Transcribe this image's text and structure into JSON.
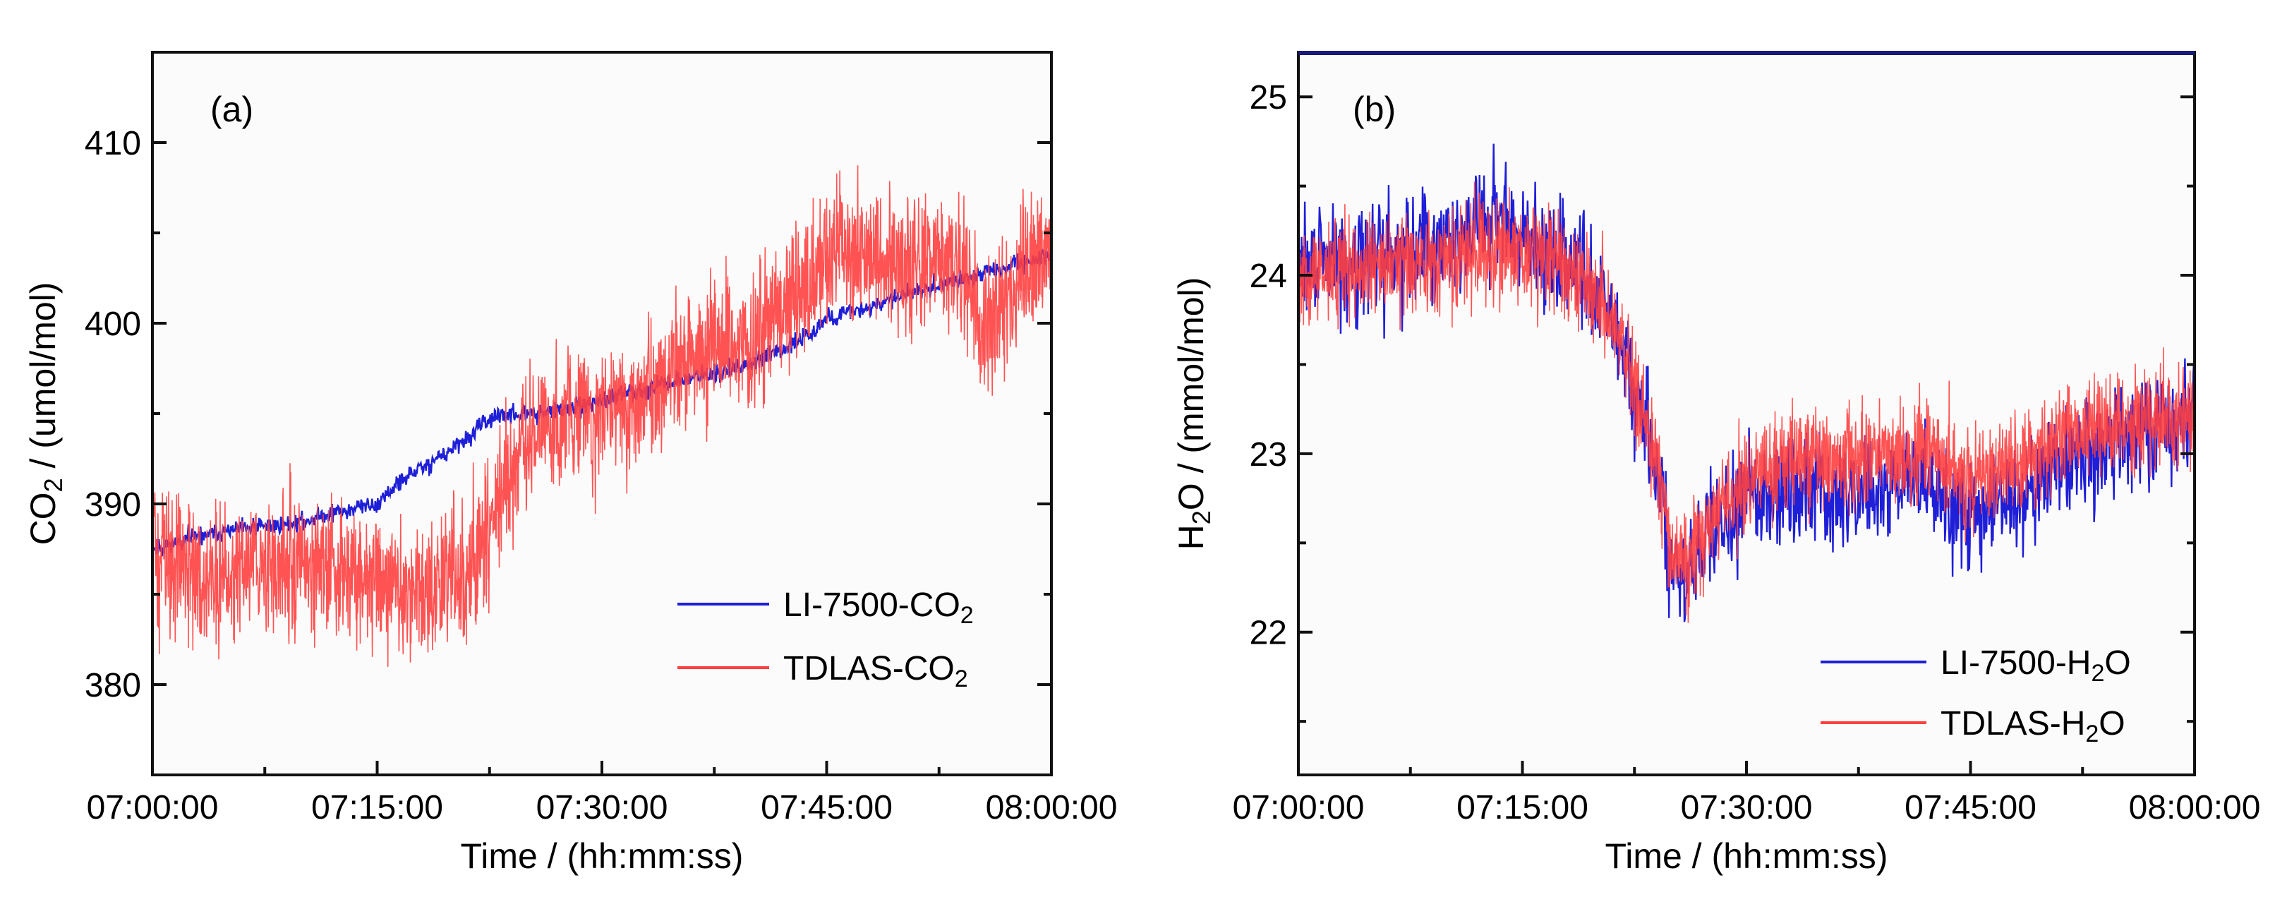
{
  "chart_data": [
    {
      "type": "line",
      "panel_label": "(a)",
      "xlabel": "Time / (hh:mm:ss)",
      "ylabel": {
        "prefix": "CO",
        "sub": "2",
        "suffix": " / (umol/mol)"
      },
      "x_ticks": [
        "07:00:00",
        "07:15:00",
        "07:30:00",
        "07:45:00",
        "08:00:00"
      ],
      "xlim_minutes": [
        0,
        60
      ],
      "ylim": [
        375,
        415
      ],
      "y_ticks": [
        380,
        390,
        400,
        410
      ],
      "legend_position": "bottom-right",
      "series": [
        {
          "name": {
            "prefix": "LI-7500-CO",
            "sub": "2"
          },
          "color": "#1f1fd8",
          "noise": 0.35,
          "points": [
            [
              0,
              387.5
            ],
            [
              2,
              388
            ],
            [
              5,
              388.5
            ],
            [
              10,
              389
            ],
            [
              12,
              389.5
            ],
            [
              15,
              390
            ],
            [
              17,
              391.5
            ],
            [
              19,
              392.5
            ],
            [
              21,
              393.5
            ],
            [
              22,
              394.5
            ],
            [
              24,
              395
            ],
            [
              26,
              395
            ],
            [
              28,
              395.3
            ],
            [
              30,
              395.7
            ],
            [
              32,
              396.2
            ],
            [
              34,
              396.6
            ],
            [
              36,
              397
            ],
            [
              38,
              397.3
            ],
            [
              40,
              397.8
            ],
            [
              42,
              398.5
            ],
            [
              44,
              399.5
            ],
            [
              45,
              400.3
            ],
            [
              47,
              400.7
            ],
            [
              49,
              401.2
            ],
            [
              51,
              401.8
            ],
            [
              53,
              402.3
            ],
            [
              56,
              402.8
            ],
            [
              58,
              403.3
            ],
            [
              60,
              403.8
            ]
          ]
        },
        {
          "name": {
            "prefix": "TDLAS-CO",
            "sub": "2"
          },
          "color": "#ff4040",
          "noise": 2.6,
          "points": [
            [
              0,
              387.5
            ],
            [
              3,
              386
            ],
            [
              7,
              386.5
            ],
            [
              11,
              386.5
            ],
            [
              15,
              386
            ],
            [
              17,
              385
            ],
            [
              19,
              385.5
            ],
            [
              21,
              386
            ],
            [
              22,
              388
            ],
            [
              24,
              392
            ],
            [
              26,
              394.5
            ],
            [
              28,
              395
            ],
            [
              30,
              395
            ],
            [
              32,
              395.5
            ],
            [
              34,
              396.5
            ],
            [
              36,
              398
            ],
            [
              38,
              398.5
            ],
            [
              40,
              399
            ],
            [
              42,
              400.5
            ],
            [
              44,
              402.5
            ],
            [
              46,
              404.5
            ],
            [
              48,
              404
            ],
            [
              50,
              403
            ],
            [
              52,
              404
            ],
            [
              54,
              402.5
            ],
            [
              56,
              399.5
            ],
            [
              58,
              403
            ],
            [
              60,
              404.5
            ]
          ]
        }
      ]
    },
    {
      "type": "line",
      "panel_label": "(b)",
      "xlabel": "Time / (hh:mm:ss)",
      "ylabel": {
        "prefix": "H",
        "sub": "2",
        "suffix": "O / (mmol/mol)"
      },
      "x_ticks": [
        "07:00:00",
        "07:15:00",
        "07:30:00",
        "07:45:00",
        "08:00:00"
      ],
      "xlim_minutes": [
        0,
        60
      ],
      "ylim": [
        21.2,
        25.25
      ],
      "y_ticks": [
        22,
        23,
        24,
        25
      ],
      "legend_position": "bottom-right",
      "series": [
        {
          "name": {
            "prefix": "LI-7500-H",
            "sub": "2",
            "suffix": "O"
          },
          "color": "#1f1fd8",
          "noise": 0.22,
          "points": [
            [
              0,
              24.05
            ],
            [
              5,
              24.1
            ],
            [
              10,
              24.2
            ],
            [
              13,
              24.3
            ],
            [
              16,
              24.15
            ],
            [
              19,
              24.05
            ],
            [
              20,
              23.9
            ],
            [
              22,
              23.5
            ],
            [
              24,
              22.9
            ],
            [
              25,
              22.3
            ],
            [
              26,
              22.35
            ],
            [
              28,
              22.55
            ],
            [
              30,
              22.75
            ],
            [
              33,
              22.85
            ],
            [
              36,
              22.75
            ],
            [
              39,
              22.8
            ],
            [
              42,
              22.85
            ],
            [
              45,
              22.65
            ],
            [
              48,
              22.7
            ],
            [
              51,
              22.9
            ],
            [
              54,
              23.05
            ],
            [
              57,
              23.15
            ],
            [
              60,
              23.2
            ]
          ]
        },
        {
          "name": {
            "prefix": "TDLAS-H",
            "sub": "2",
            "suffix": "O"
          },
          "color": "#ff4040",
          "noise": 0.2,
          "points": [
            [
              0,
              24.0
            ],
            [
              5,
              24.05
            ],
            [
              10,
              24.1
            ],
            [
              13,
              24.15
            ],
            [
              16,
              24.1
            ],
            [
              19,
              24.0
            ],
            [
              20,
              23.9
            ],
            [
              22,
              23.55
            ],
            [
              24,
              22.95
            ],
            [
              25,
              22.45
            ],
            [
              26,
              22.4
            ],
            [
              28,
              22.65
            ],
            [
              30,
              22.85
            ],
            [
              33,
              22.95
            ],
            [
              36,
              22.95
            ],
            [
              39,
              23.0
            ],
            [
              42,
              23.0
            ],
            [
              45,
              22.85
            ],
            [
              48,
              22.95
            ],
            [
              51,
              23.1
            ],
            [
              54,
              23.15
            ],
            [
              57,
              23.2
            ],
            [
              60,
              23.2
            ]
          ]
        }
      ]
    }
  ]
}
